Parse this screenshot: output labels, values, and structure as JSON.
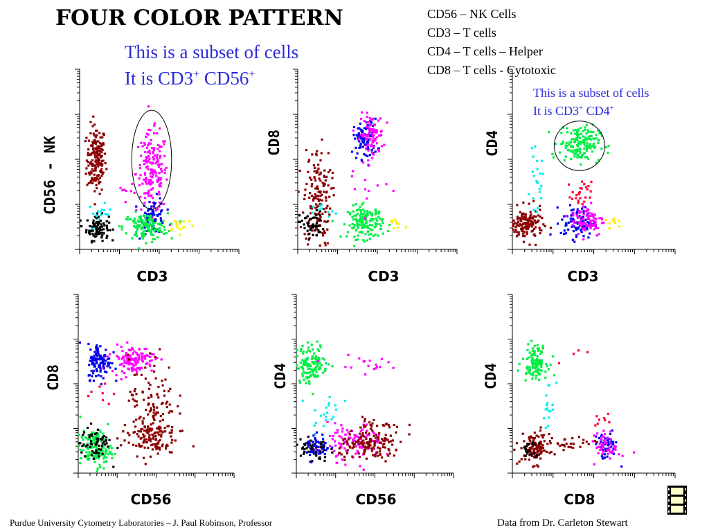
{
  "header": {
    "title": "FOUR COLOR PATTERN",
    "subtitle_line1": "This is a subset of cells",
    "subtitle_line2_prefix": "It is CD3",
    "subtitle_line2_mid": " CD56",
    "sup_plus": "+"
  },
  "legend": [
    "CD56 – NK Cells",
    "CD3 – T cells",
    "CD4 – T cells – Helper",
    "CD8 – T cells - Cytotoxic"
  ],
  "annotation": {
    "line1": "This is a subset of cells",
    "line2_prefix": "It is CD3",
    "line2_mid": " CD4"
  },
  "footer": {
    "left": "Purdue University Cytometry Laboratories – J. Paul Robinson, Professor",
    "right": "Data from Dr. Carleton Stewart"
  },
  "icons": {
    "corner": "film-strip-icon"
  },
  "colors": {
    "title_blue": "#2a2ad8",
    "darkred": "#8b0000",
    "magenta": "#ff00ff",
    "green": "#00ee44",
    "blue": "#0000ee",
    "cyan": "#00eeee",
    "black": "#000000",
    "yellow": "#ffee00",
    "red": "#ff0033"
  },
  "chart_data": [
    {
      "type": "scatter",
      "xlabel": "CD3",
      "ylabel": "CD56 - NK",
      "xscale": "log",
      "yscale": "log",
      "xlim": [
        0,
        4
      ],
      "ylim": [
        0,
        4
      ],
      "gate": {
        "cx": 1.81,
        "cy": 1.99,
        "rx": 0.5,
        "ry": 1.1
      },
      "clusters": [
        {
          "color": "darkred",
          "cx": 0.42,
          "cy": 2.0,
          "sx": 0.12,
          "sy": 0.38,
          "n": 170
        },
        {
          "color": "black",
          "cx": 0.45,
          "cy": 0.48,
          "sx": 0.14,
          "sy": 0.14,
          "n": 90
        },
        {
          "color": "cyan",
          "cx": 0.5,
          "cy": 0.8,
          "sx": 0.15,
          "sy": 0.1,
          "n": 14
        },
        {
          "color": "magenta",
          "cx": 1.82,
          "cy": 1.7,
          "sx": 0.2,
          "sy": 0.45,
          "n": 170
        },
        {
          "color": "blue",
          "cx": 1.85,
          "cy": 0.75,
          "sx": 0.15,
          "sy": 0.2,
          "n": 70
        },
        {
          "color": "green",
          "cx": 1.65,
          "cy": 0.5,
          "sx": 0.28,
          "sy": 0.15,
          "n": 130
        },
        {
          "color": "yellow",
          "cx": 2.55,
          "cy": 0.55,
          "sx": 0.18,
          "sy": 0.08,
          "n": 16
        },
        {
          "color": "magenta",
          "cx": 1.1,
          "cy": 1.3,
          "sx": 0.15,
          "sy": 0.2,
          "n": 6
        }
      ]
    },
    {
      "type": "scatter",
      "xlabel": "CD3",
      "ylabel": "CD8",
      "xscale": "log",
      "yscale": "log",
      "xlim": [
        0,
        4
      ],
      "ylim": [
        0,
        4
      ],
      "clusters": [
        {
          "color": "darkred",
          "cx": 0.5,
          "cy": 1.15,
          "sx": 0.17,
          "sy": 0.55,
          "n": 150
        },
        {
          "color": "black",
          "cx": 0.35,
          "cy": 0.55,
          "sx": 0.15,
          "sy": 0.15,
          "n": 50
        },
        {
          "color": "cyan",
          "cx": 0.7,
          "cy": 0.8,
          "sx": 0.15,
          "sy": 0.1,
          "n": 10
        },
        {
          "color": "blue",
          "cx": 1.7,
          "cy": 2.45,
          "sx": 0.15,
          "sy": 0.22,
          "n": 90
        },
        {
          "color": "magenta",
          "cx": 1.85,
          "cy": 2.55,
          "sx": 0.15,
          "sy": 0.22,
          "n": 90
        },
        {
          "color": "green",
          "cx": 1.7,
          "cy": 0.6,
          "sx": 0.22,
          "sy": 0.18,
          "n": 150
        },
        {
          "color": "yellow",
          "cx": 2.45,
          "cy": 0.55,
          "sx": 0.1,
          "sy": 0.08,
          "n": 10
        },
        {
          "color": "magenta",
          "cx": 1.7,
          "cy": 1.4,
          "sx": 0.3,
          "sy": 0.3,
          "n": 12
        }
      ]
    },
    {
      "type": "scatter",
      "xlabel": "CD3",
      "ylabel": "CD4",
      "xscale": "log",
      "yscale": "log",
      "xlim": [
        0,
        4
      ],
      "ylim": [
        0,
        4
      ],
      "gate": {
        "cx": 1.65,
        "cy": 2.3,
        "rx": 0.62,
        "ry": 0.55
      },
      "clusters": [
        {
          "color": "darkred",
          "cx": 0.35,
          "cy": 0.55,
          "sx": 0.2,
          "sy": 0.18,
          "n": 140
        },
        {
          "color": "cyan",
          "cx": 0.6,
          "cy": 1.5,
          "sx": 0.08,
          "sy": 0.3,
          "n": 22
        },
        {
          "color": "green",
          "cx": 1.65,
          "cy": 2.35,
          "sx": 0.25,
          "sy": 0.2,
          "n": 160
        },
        {
          "color": "red",
          "cx": 1.7,
          "cy": 1.2,
          "sx": 0.12,
          "sy": 0.15,
          "n": 25
        },
        {
          "color": "blue",
          "cx": 1.6,
          "cy": 0.6,
          "sx": 0.2,
          "sy": 0.18,
          "n": 90
        },
        {
          "color": "magenta",
          "cx": 1.85,
          "cy": 0.65,
          "sx": 0.2,
          "sy": 0.18,
          "n": 80
        },
        {
          "color": "yellow",
          "cx": 2.5,
          "cy": 0.6,
          "sx": 0.1,
          "sy": 0.1,
          "n": 10
        }
      ]
    },
    {
      "type": "scatter",
      "xlabel": "CD56",
      "ylabel": "CD8",
      "xscale": "log",
      "yscale": "log",
      "xlim": [
        0,
        4
      ],
      "ylim": [
        0,
        4
      ],
      "clusters": [
        {
          "color": "blue",
          "cx": 0.55,
          "cy": 2.5,
          "sx": 0.15,
          "sy": 0.2,
          "n": 110
        },
        {
          "color": "magenta",
          "cx": 1.4,
          "cy": 2.55,
          "sx": 0.28,
          "sy": 0.15,
          "n": 120
        },
        {
          "color": "green",
          "cx": 0.45,
          "cy": 0.55,
          "sx": 0.2,
          "sy": 0.2,
          "n": 140
        },
        {
          "color": "black",
          "cx": 0.45,
          "cy": 0.65,
          "sx": 0.2,
          "sy": 0.2,
          "n": 60
        },
        {
          "color": "darkred",
          "cx": 1.8,
          "cy": 0.8,
          "sx": 0.35,
          "sy": 0.2,
          "n": 130
        },
        {
          "color": "darkred",
          "cx": 1.9,
          "cy": 1.7,
          "sx": 0.3,
          "sy": 0.45,
          "n": 90
        },
        {
          "color": "red",
          "cx": 0.7,
          "cy": 1.8,
          "sx": 0.2,
          "sy": 0.15,
          "n": 8
        }
      ]
    },
    {
      "type": "scatter",
      "xlabel": "CD56",
      "ylabel": "CD4",
      "xscale": "log",
      "yscale": "log",
      "xlim": [
        0,
        4
      ],
      "ylim": [
        0,
        4
      ],
      "clusters": [
        {
          "color": "green",
          "cx": 0.4,
          "cy": 2.45,
          "sx": 0.2,
          "sy": 0.22,
          "n": 130
        },
        {
          "color": "magenta",
          "cx": 1.5,
          "cy": 2.45,
          "sx": 0.4,
          "sy": 0.08,
          "n": 18
        },
        {
          "color": "cyan",
          "cx": 0.75,
          "cy": 1.4,
          "sx": 0.2,
          "sy": 0.25,
          "n": 20
        },
        {
          "color": "black",
          "cx": 0.4,
          "cy": 0.55,
          "sx": 0.2,
          "sy": 0.15,
          "n": 60
        },
        {
          "color": "blue",
          "cx": 0.55,
          "cy": 0.6,
          "sx": 0.15,
          "sy": 0.15,
          "n": 40
        },
        {
          "color": "magenta",
          "cx": 1.5,
          "cy": 0.7,
          "sx": 0.35,
          "sy": 0.2,
          "n": 110
        },
        {
          "color": "darkred",
          "cx": 1.9,
          "cy": 0.6,
          "sx": 0.4,
          "sy": 0.17,
          "n": 130
        },
        {
          "color": "darkred",
          "cx": 2.2,
          "cy": 1.0,
          "sx": 0.3,
          "sy": 0.2,
          "n": 25
        }
      ]
    },
    {
      "type": "scatter",
      "xlabel": "CD8",
      "ylabel": "CD4",
      "xscale": "log",
      "yscale": "log",
      "xlim": [
        0,
        4
      ],
      "ylim": [
        0,
        4
      ],
      "clusters": [
        {
          "color": "green",
          "cx": 0.55,
          "cy": 2.5,
          "sx": 0.15,
          "sy": 0.18,
          "n": 110
        },
        {
          "color": "cyan",
          "cx": 0.9,
          "cy": 1.5,
          "sx": 0.08,
          "sy": 0.25,
          "n": 16
        },
        {
          "color": "darkred",
          "cx": 0.55,
          "cy": 0.55,
          "sx": 0.18,
          "sy": 0.17,
          "n": 110
        },
        {
          "color": "black",
          "cx": 0.45,
          "cy": 0.5,
          "sx": 0.12,
          "sy": 0.12,
          "n": 20
        },
        {
          "color": "darkred",
          "cx": 1.4,
          "cy": 0.65,
          "sx": 0.3,
          "sy": 0.08,
          "n": 30
        },
        {
          "color": "blue",
          "cx": 2.3,
          "cy": 0.6,
          "sx": 0.15,
          "sy": 0.15,
          "n": 50
        },
        {
          "color": "magenta",
          "cx": 2.35,
          "cy": 0.6,
          "sx": 0.15,
          "sy": 0.15,
          "n": 50
        },
        {
          "color": "red",
          "cx": 2.2,
          "cy": 1.2,
          "sx": 0.15,
          "sy": 0.1,
          "n": 8
        },
        {
          "color": "red",
          "cx": 1.7,
          "cy": 2.6,
          "sx": 0.2,
          "sy": 0.15,
          "n": 4
        }
      ]
    }
  ]
}
